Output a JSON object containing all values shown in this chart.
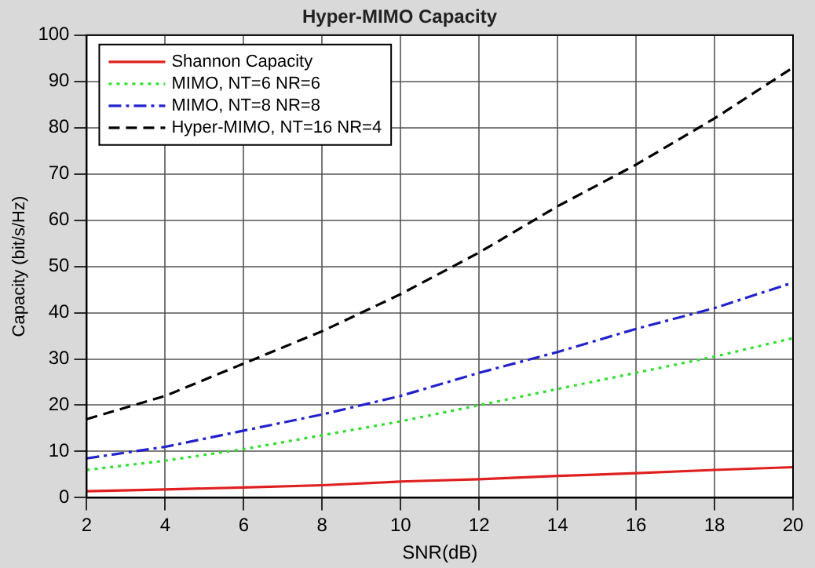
{
  "chart_data": {
    "type": "line",
    "title": "Hyper-MIMO Capacity",
    "xlabel": "SNR(dB)",
    "ylabel": "Capacity (bit/s/Hz)",
    "x": [
      2,
      4,
      6,
      8,
      10,
      12,
      14,
      16,
      18,
      20
    ],
    "series": [
      {
        "name": "Shannon Capacity",
        "color": "#e02020",
        "line_style": "solid",
        "values": [
          1.4,
          1.8,
          2.2,
          2.7,
          3.5,
          4,
          4.7,
          5.3,
          6,
          6.6
        ]
      },
      {
        "name": "MIMO, NT=6 NR=6",
        "color": "#33dd33",
        "line_style": "dotted",
        "values": [
          6,
          8,
          10.5,
          13.5,
          16.5,
          20,
          23.5,
          27,
          30.5,
          34.5
        ]
      },
      {
        "name": "MIMO, NT=8 NR=8",
        "color": "#2222cc",
        "line_style": "dashdot",
        "values": [
          8.5,
          11,
          14.5,
          18,
          22,
          27,
          31.5,
          36.5,
          41,
          46.5
        ]
      },
      {
        "name": "Hyper-MIMO, NT=16 NR=4",
        "color": "#000000",
        "line_style": "dashed",
        "values": [
          17,
          22,
          29,
          36,
          44,
          53,
          63,
          72,
          82,
          93
        ]
      }
    ],
    "xlim": [
      2,
      20
    ],
    "xticks": [
      2,
      4,
      6,
      8,
      10,
      12,
      14,
      16,
      18,
      20
    ],
    "ylim": [
      0,
      100
    ],
    "yticks": [
      0,
      10,
      20,
      30,
      40,
      50,
      60,
      70,
      80,
      90,
      100
    ],
    "grid": true,
    "legend": "top left",
    "marker": "none"
  }
}
